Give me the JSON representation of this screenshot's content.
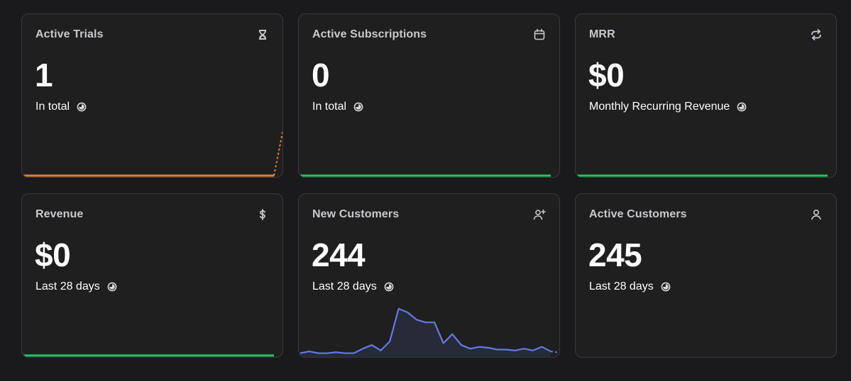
{
  "cards": [
    {
      "title": "Active Trials",
      "value": "1",
      "subtitle": "In total",
      "icon": "hourglass-icon",
      "spark_color": "#e0803a",
      "spark": "trials"
    },
    {
      "title": "Active Subscriptions",
      "value": "0",
      "subtitle": "In total",
      "icon": "calendar-icon",
      "spark_color": "#22c55e",
      "spark": "flat"
    },
    {
      "title": "MRR",
      "value": "$0",
      "subtitle": "Monthly Recurring Revenue",
      "icon": "refresh-icon",
      "spark_color": "#22c55e",
      "spark": "flat"
    },
    {
      "title": "Revenue",
      "value": "$0",
      "subtitle": "Last 28 days",
      "icon": "dollar-icon",
      "spark_color": "#22c55e",
      "spark": "flat"
    },
    {
      "title": "New Customers",
      "value": "244",
      "subtitle": "Last 28 days",
      "icon": "add-user-icon",
      "spark_color": "#6678e6",
      "spark": "customers",
      "spark_values": [
        1,
        3,
        1,
        1,
        2,
        1,
        1,
        6,
        10,
        4,
        14,
        50,
        46,
        38,
        35,
        35,
        12,
        22,
        10,
        6,
        8,
        7,
        5,
        5,
        4,
        6,
        4,
        8,
        3
      ]
    },
    {
      "title": "Active Customers",
      "value": "245",
      "subtitle": "Last 28 days",
      "icon": "user-icon",
      "spark_color": "",
      "spark": "none"
    }
  ]
}
